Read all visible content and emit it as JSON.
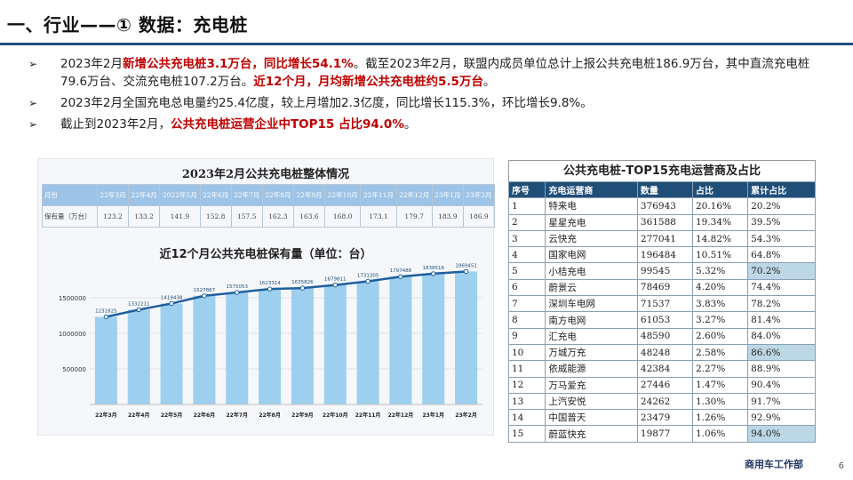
{
  "slide": {
    "title": "一、行业——① 数据：充电桩",
    "footer": "商用车工作部",
    "page_number": "6"
  },
  "bullets": [
    {
      "marker": "➢",
      "segments": [
        {
          "text": "2023年2月",
          "hl": false
        },
        {
          "text": "新增公共充电桩3.1万台，同比增长54.1%",
          "hl": true
        },
        {
          "text": "。截至2023年2月，联盟内成员单位总计上报公共充电桩186.9万台，其中直流充电桩79.6万台、交流充电桩107.2万台。",
          "hl": false
        },
        {
          "text": "近12个月，月均新增公共充电桩约5.5万台",
          "hl": true
        },
        {
          "text": "。",
          "hl": false
        }
      ]
    },
    {
      "marker": "➢",
      "segments": [
        {
          "text": "2023年2月全国充电总电量约25.4亿度，较上月增加2.3亿度，同比增长115.3%，环比增长9.8%。",
          "hl": false
        }
      ]
    },
    {
      "marker": "➢",
      "segments": [
        {
          "text": "截止到2023年2月，",
          "hl": false
        },
        {
          "text": "公共充电桩运营企业中TOP15 占比94.0%",
          "hl": true
        },
        {
          "text": "。",
          "hl": false
        }
      ]
    }
  ],
  "summary_table": {
    "title": "2023年2月公共充电桩整体情况",
    "row_label_month": "月份",
    "row_label_value": "保有量（万台）",
    "months": [
      "22年3月",
      "22年4月",
      "2022年5月",
      "22年6月",
      "22年7月",
      "22年8月",
      "22年9月",
      "22年10月",
      "22年11月",
      "22年12月",
      "23年1月",
      "23年2月"
    ],
    "values": [
      "123.2",
      "133.2",
      "141.9",
      "152.8",
      "157.5",
      "162.3",
      "163.6",
      "168.0",
      "173.1",
      "179.7",
      "183.9",
      "186.9"
    ]
  },
  "chart_data": {
    "type": "bar",
    "title": "近12个月公共充电桩保有量（单位：台）",
    "categories": [
      "22年3月",
      "22年4月",
      "22年5月",
      "22年6月",
      "22年7月",
      "22年8月",
      "22年9月",
      "22年10月",
      "22年11月",
      "22年12月",
      "23年1月",
      "23年2月"
    ],
    "values": [
      1231825,
      1332211,
      1419438,
      1527867,
      1575053,
      1623314,
      1635826,
      1679811,
      1731305,
      1797488,
      1838516,
      1869451
    ],
    "ylim": [
      0,
      1900000
    ],
    "yticks": [
      500000,
      1000000,
      1500000
    ],
    "line_overlay": true,
    "bar_color": "#9dd0ee",
    "line_color": "#1f5f9f"
  },
  "top15": {
    "title": "公共充电桩-TOP15充电运营商及占比",
    "headers": [
      "序号",
      "充电运营商",
      "数量",
      "占比",
      "累计占比"
    ],
    "rows": [
      [
        "1",
        "特来电",
        "376943",
        "20.16%",
        "20.2%"
      ],
      [
        "2",
        "星星充电",
        "361588",
        "19.34%",
        "39.5%"
      ],
      [
        "3",
        "云快充",
        "277041",
        "14.82%",
        "54.3%"
      ],
      [
        "4",
        "国家电网",
        "196484",
        "10.51%",
        "64.8%"
      ],
      [
        "5",
        "小桔充电",
        "99545",
        "5.32%",
        "70.2%"
      ],
      [
        "6",
        "蔚景云",
        "78469",
        "4.20%",
        "74.4%"
      ],
      [
        "7",
        "深圳车电网",
        "71537",
        "3.83%",
        "78.2%"
      ],
      [
        "8",
        "南方电网",
        "61053",
        "3.27%",
        "81.4%"
      ],
      [
        "9",
        "汇充电",
        "48590",
        "2.60%",
        "84.0%"
      ],
      [
        "10",
        "万城万充",
        "48248",
        "2.58%",
        "86.6%"
      ],
      [
        "11",
        "依威能源",
        "42384",
        "2.27%",
        "88.9%"
      ],
      [
        "12",
        "万马爱充",
        "27446",
        "1.47%",
        "90.4%"
      ],
      [
        "13",
        "上汽安悦",
        "24262",
        "1.30%",
        "91.7%"
      ],
      [
        "14",
        "中国普天",
        "23479",
        "1.26%",
        "92.9%"
      ],
      [
        "15",
        "蔚蓝快充",
        "19877",
        "1.06%",
        "94.0%"
      ]
    ],
    "highlight_rows": [
      5,
      10,
      15
    ],
    "highlight_color": "#bcd7e6",
    "header_color": "#1f4e79"
  }
}
